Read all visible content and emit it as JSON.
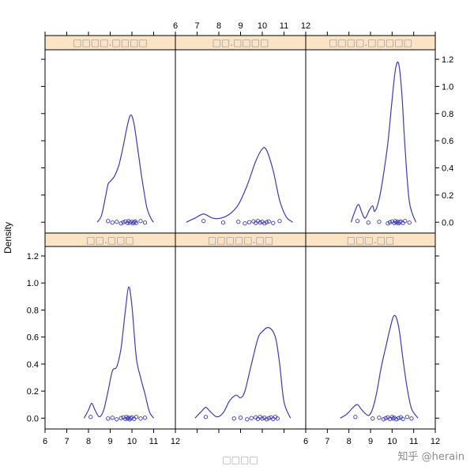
{
  "chart_data": {
    "type": "line",
    "ylabel": "Density",
    "xlabel": "□□□□",
    "xlim": [
      6,
      12
    ],
    "ylim": [
      -0.08,
      1.27
    ],
    "x_ticks": [
      6,
      7,
      8,
      9,
      10,
      11,
      12
    ],
    "y_ticks": [
      0.0,
      0.2,
      0.4,
      0.6,
      0.8,
      1.0,
      1.2
    ],
    "line_color": "#3b3bb3",
    "point_color": "#3b3bb3",
    "strip_color": "#fbe3c6",
    "watermark": "知乎 @herain",
    "panels": [
      {
        "strip": "□□□□.□□□□",
        "density_x": [
          8.4,
          8.6,
          8.8,
          8.9,
          9.0,
          9.2,
          9.4,
          9.6,
          9.8,
          9.95,
          10.1,
          10.3,
          10.5,
          10.7,
          10.9,
          11.0
        ],
        "density_y": [
          0.0,
          0.05,
          0.2,
          0.28,
          0.3,
          0.34,
          0.42,
          0.56,
          0.72,
          0.79,
          0.72,
          0.5,
          0.28,
          0.1,
          0.02,
          0.0
        ],
        "points": [
          8.9,
          9.1,
          9.3,
          9.5,
          9.6,
          9.7,
          9.8,
          9.85,
          9.9,
          10.0,
          10.05,
          10.1,
          10.15,
          10.2,
          10.4,
          10.6
        ]
      },
      {
        "strip": "□□.□□□□",
        "density_x": [
          6.5,
          6.9,
          7.3,
          7.7,
          8.1,
          8.5,
          8.9,
          9.3,
          9.7,
          10.0,
          10.2,
          10.5,
          10.8,
          11.1,
          11.4
        ],
        "density_y": [
          0.0,
          0.03,
          0.06,
          0.03,
          0.03,
          0.06,
          0.13,
          0.27,
          0.45,
          0.54,
          0.53,
          0.38,
          0.16,
          0.04,
          0.0
        ],
        "points": [
          7.3,
          8.2,
          8.9,
          9.2,
          9.4,
          9.6,
          9.7,
          9.8,
          9.9,
          10.0,
          10.1,
          10.2,
          10.3,
          10.5,
          10.8
        ]
      },
      {
        "strip": "□□□□.□□□□□",
        "density_x": [
          8.1,
          8.3,
          8.45,
          8.6,
          8.75,
          8.95,
          9.1,
          9.2,
          9.4,
          9.6,
          9.8,
          10.0,
          10.15,
          10.3,
          10.45,
          10.6,
          10.8,
          11.1
        ],
        "density_y": [
          0.0,
          0.09,
          0.13,
          0.07,
          0.03,
          0.09,
          0.12,
          0.08,
          0.17,
          0.35,
          0.58,
          0.9,
          1.12,
          1.17,
          0.95,
          0.55,
          0.15,
          0.0
        ],
        "points": [
          8.4,
          8.9,
          9.4,
          9.8,
          9.9,
          10.0,
          10.1,
          10.15,
          10.2,
          10.25,
          10.3,
          10.35,
          10.4,
          10.5,
          10.6,
          10.8
        ]
      },
      {
        "strip": "□□.□□□",
        "density_x": [
          7.8,
          8.0,
          8.15,
          8.3,
          8.5,
          8.7,
          8.9,
          9.1,
          9.3,
          9.5,
          9.7,
          9.85,
          10.0,
          10.2,
          10.4,
          10.6,
          10.8,
          11.0
        ],
        "density_y": [
          0.0,
          0.06,
          0.11,
          0.06,
          0.01,
          0.06,
          0.2,
          0.35,
          0.38,
          0.52,
          0.8,
          0.97,
          0.83,
          0.45,
          0.3,
          0.18,
          0.05,
          0.0
        ],
        "points": [
          8.1,
          8.9,
          9.1,
          9.3,
          9.5,
          9.6,
          9.7,
          9.75,
          9.8,
          9.85,
          9.9,
          9.95,
          10.0,
          10.1,
          10.2,
          10.4,
          10.6
        ]
      },
      {
        "strip": "□□□□□.□□",
        "density_x": [
          6.9,
          7.2,
          7.4,
          7.6,
          7.9,
          8.2,
          8.5,
          8.8,
          9.0,
          9.2,
          9.5,
          9.8,
          10.0,
          10.3,
          10.6,
          10.8,
          11.0,
          11.3
        ],
        "density_y": [
          0.0,
          0.05,
          0.08,
          0.05,
          0.01,
          0.04,
          0.13,
          0.17,
          0.15,
          0.2,
          0.4,
          0.59,
          0.64,
          0.67,
          0.6,
          0.4,
          0.12,
          0.0
        ],
        "points": [
          7.4,
          8.7,
          9.0,
          9.3,
          9.5,
          9.7,
          9.8,
          9.9,
          10.0,
          10.1,
          10.2,
          10.3,
          10.4,
          10.5,
          10.6,
          10.7
        ]
      },
      {
        "strip": "□□□.□□",
        "density_x": [
          7.6,
          7.9,
          8.2,
          8.4,
          8.6,
          8.9,
          9.1,
          9.3,
          9.5,
          9.7,
          9.9,
          10.1,
          10.3,
          10.5,
          10.7,
          10.9,
          11.2
        ],
        "density_y": [
          0.0,
          0.03,
          0.08,
          0.1,
          0.06,
          0.02,
          0.07,
          0.2,
          0.38,
          0.52,
          0.66,
          0.76,
          0.68,
          0.44,
          0.22,
          0.07,
          0.0
        ],
        "points": [
          8.3,
          9.1,
          9.4,
          9.6,
          9.7,
          9.8,
          9.9,
          10.0,
          10.05,
          10.1,
          10.2,
          10.3,
          10.4,
          10.5,
          10.7,
          10.9
        ]
      }
    ]
  }
}
